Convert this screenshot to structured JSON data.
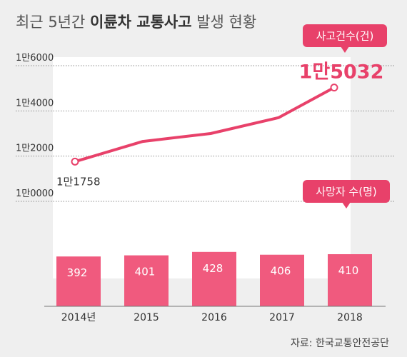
{
  "title": {
    "prefix": "최근 5년간 ",
    "bold": "이륜차 교통사고",
    "suffix": " 발생 현황"
  },
  "source": "자료: 한국교통안전공단",
  "chart_data": {
    "type": "bar+line",
    "categories": [
      "2014년",
      "2015",
      "2016",
      "2017",
      "2018"
    ],
    "line": {
      "name": "사고건수(건)",
      "values": [
        11758,
        12650,
        13000,
        13700,
        15032
      ],
      "first_label": "1만1758",
      "last_label": "1만5032",
      "yticks": [
        {
          "value": 10000,
          "label": "1만0000"
        },
        {
          "value": 12000,
          "label": "1만2000"
        },
        {
          "value": 14000,
          "label": "1만4000"
        },
        {
          "value": 16000,
          "label": "1만6000"
        }
      ]
    },
    "bars": {
      "name": "사망자 수(명)",
      "values": [
        392,
        401,
        428,
        406,
        410
      ],
      "labels": [
        "392",
        "401",
        "428",
        "406",
        "410"
      ]
    },
    "colors": {
      "bar": "#f05a7e",
      "line": "#e8416a",
      "accent": "#e8416a"
    },
    "grid": true
  }
}
